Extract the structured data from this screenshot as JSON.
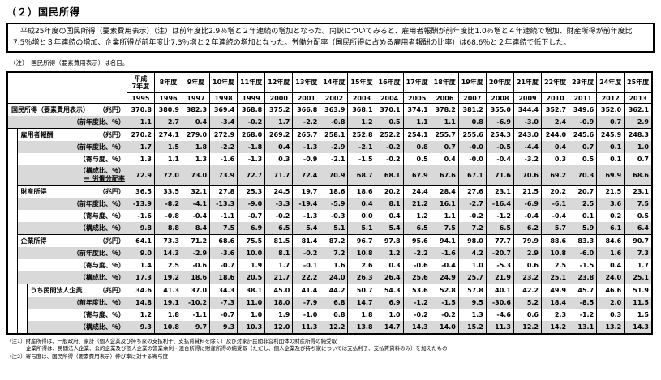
{
  "page": {
    "title": "（２）国民所得",
    "summary": "　平成25年度の国民所得（要素費用表示）（注）は前年度比2.9％増と２年連続の増加となった。内訳についてみると、雇用者報酬が前年度比1.0％増と４年連続で増加、財産所得が前年度比7.5％増と３年連続の増加、企業所得が前年度比7.3％増と２年連続の増加となった。労働分配率（国民所得に占める雇用者報酬の比率）は68.6％と２年連続で低下した。",
    "note": "（注）　国民所得（要素費用表示）は名目。",
    "footnotes": [
      "（注1）財産所得は、一般政府、家計（個人企業及び持ち家の支払利子、支払賃貸料を除く）及び対家計民間非営利団体の財産所得の純受取",
      "企業所得は、民間法人企業、公的企業及び個人企業の営業余剰・混合所得に財産所得の純受取（ただし、個人企業及び持ち家については支払利子、支払賃貸料のみ）を加えたもの",
      "（注2）寄与度は、国民所得（要素費用表示）伸び率に対する寄与度"
    ]
  },
  "colors": {
    "shade": "#d9d9d9",
    "border": "#000000",
    "text": "#000000"
  },
  "table": {
    "era_labels": [
      "平成\n7年度",
      "8年度",
      "9年度",
      "10年度",
      "11年度",
      "12年度",
      "13年度",
      "14年度",
      "15年度",
      "16年度",
      "17年度",
      "18年度",
      "19年度",
      "20年度",
      "21年度",
      "22年度",
      "23年度",
      "24年度",
      "25年度"
    ],
    "years": [
      "1995",
      "1996",
      "1997",
      "1998",
      "1999",
      "2000",
      "2001",
      "2002",
      "2003",
      "2004",
      "2005",
      "2006",
      "2007",
      "2008",
      "2009",
      "2010",
      "2011",
      "2012",
      "2013"
    ],
    "sections": [
      {
        "name": "国民所得（要素費用表示）",
        "indent": 0,
        "rows": [
          {
            "label": "国民所得（要素費用表示）",
            "unit": "（兆円）",
            "shaded": false,
            "values": [
              "370.8",
              "380.9",
              "382.3",
              "369.4",
              "368.8",
              "375.2",
              "366.8",
              "363.9",
              "368.1",
              "370.1",
              "374.1",
              "378.2",
              "381.2",
              "355.0",
              "344.4",
              "352.7",
              "349.6",
              "352.0",
              "362.1"
            ]
          },
          {
            "label": "",
            "unit": "（前年度比、％）",
            "shaded": true,
            "values": [
              "1.1",
              "2.7",
              "0.4",
              "-3.4",
              "-0.2",
              "1.7",
              "-2.2",
              "-0.8",
              "1.2",
              "0.5",
              "1.1",
              "1.1",
              "0.8",
              "-6.9",
              "-3.0",
              "2.4",
              "-0.9",
              "0.7",
              "2.9"
            ]
          }
        ]
      },
      {
        "name": "雇用者報酬",
        "indent": 1,
        "rows": [
          {
            "label": "雇用者報酬",
            "unit": "（兆円）",
            "shaded": false,
            "values": [
              "270.2",
              "274.1",
              "279.0",
              "272.9",
              "268.0",
              "269.2",
              "265.7",
              "258.1",
              "252.8",
              "252.2",
              "254.1",
              "255.7",
              "255.6",
              "254.3",
              "243.0",
              "244.0",
              "245.6",
              "245.9",
              "248.3"
            ]
          },
          {
            "label": "",
            "unit": "（前年度比、％）",
            "shaded": true,
            "values": [
              "1.7",
              "1.5",
              "1.8",
              "-2.2",
              "-1.8",
              "0.4",
              "-1.3",
              "-2.9",
              "-2.1",
              "-0.2",
              "0.8",
              "0.7",
              "-0.0",
              "-0.5",
              "-4.4",
              "0.4",
              "0.7",
              "0.1",
              "1.0"
            ]
          },
          {
            "label": "",
            "unit": "（寄与度、％）",
            "shaded": false,
            "values": [
              "1.3",
              "1.1",
              "1.3",
              "-1.6",
              "-1.3",
              "0.3",
              "-0.9",
              "-2.1",
              "-1.5",
              "-0.2",
              "0.5",
              "0.4",
              "-0.0",
              "-0.4",
              "-3.2",
              "0.3",
              "0.5",
              "0.1",
              "0.7"
            ]
          },
          {
            "label": "",
            "unit": "（構成比、％）",
            "note": "＝ 労働分配率",
            "shaded": true,
            "values": [
              "72.9",
              "72.0",
              "73.0",
              "73.9",
              "72.7",
              "71.7",
              "72.4",
              "70.9",
              "68.7",
              "68.1",
              "67.9",
              "67.6",
              "67.1",
              "71.6",
              "70.6",
              "69.2",
              "70.3",
              "69.9",
              "68.6"
            ]
          }
        ]
      },
      {
        "name": "財産所得",
        "indent": 1,
        "rows": [
          {
            "label": "財産所得",
            "unit": "（兆円）",
            "shaded": false,
            "values": [
              "36.5",
              "33.5",
              "32.1",
              "27.8",
              "25.3",
              "24.5",
              "19.7",
              "18.6",
              "18.6",
              "20.2",
              "24.4",
              "28.4",
              "27.6",
              "23.1",
              "21.5",
              "20.2",
              "20.7",
              "21.5",
              "23.1"
            ]
          },
          {
            "label": "",
            "unit": "（前年度比、％）",
            "shaded": true,
            "values": [
              "-13.9",
              "-8.2",
              "-4.1",
              "-13.3",
              "-9.0",
              "-3.3",
              "-19.4",
              "-5.9",
              "0.4",
              "8.1",
              "21.2",
              "16.1",
              "-2.7",
              "-16.4",
              "-6.9",
              "-6.1",
              "2.5",
              "3.6",
              "7.5"
            ]
          },
          {
            "label": "",
            "unit": "（寄与度、％）",
            "shaded": false,
            "values": [
              "-1.6",
              "-0.8",
              "-0.4",
              "-1.1",
              "-0.7",
              "-0.2",
              "-1.3",
              "-0.3",
              "0.0",
              "0.4",
              "1.2",
              "1.1",
              "-0.2",
              "-1.2",
              "-0.4",
              "-0.4",
              "0.1",
              "0.2",
              "0.5"
            ]
          },
          {
            "label": "",
            "unit": "（構成比、％）",
            "shaded": true,
            "values": [
              "9.8",
              "8.8",
              "8.4",
              "7.5",
              "6.9",
              "6.5",
              "5.4",
              "5.1",
              "5.1",
              "5.4",
              "6.5",
              "7.5",
              "7.2",
              "6.5",
              "6.2",
              "5.7",
              "5.9",
              "6.1",
              "6.4"
            ]
          }
        ]
      },
      {
        "name": "企業所得",
        "indent": 1,
        "rows": [
          {
            "label": "企業所得",
            "unit": "（兆円）",
            "shaded": false,
            "values": [
              "64.1",
              "73.3",
              "71.2",
              "68.6",
              "75.5",
              "81.5",
              "81.4",
              "87.2",
              "96.7",
              "97.8",
              "95.6",
              "94.1",
              "98.0",
              "77.7",
              "79.9",
              "88.6",
              "83.3",
              "84.6",
              "90.7"
            ]
          },
          {
            "label": "",
            "unit": "（前年度比、％）",
            "shaded": true,
            "values": [
              "9.0",
              "14.3",
              "-2.9",
              "-3.6",
              "10.0",
              "8.1",
              "-0.2",
              "7.2",
              "10.8",
              "1.2",
              "-2.2",
              "-1.6",
              "4.2",
              "-20.7",
              "2.9",
              "10.8",
              "-6.0",
              "1.6",
              "7.3"
            ]
          },
          {
            "label": "",
            "unit": "（寄与度、％）",
            "shaded": false,
            "values": [
              "1.4",
              "2.5",
              "-0.6",
              "-0.7",
              "1.9",
              "1.7",
              "-0.1",
              "1.6",
              "2.6",
              "0.3",
              "-0.6",
              "-0.4",
              "1.0",
              "-5.3",
              "0.6",
              "2.5",
              "-1.5",
              "0.4",
              "1.7"
            ]
          },
          {
            "label": "",
            "unit": "（構成比、％）",
            "shaded": true,
            "values": [
              "17.3",
              "19.2",
              "18.6",
              "18.6",
              "20.5",
              "21.7",
              "22.2",
              "24.0",
              "26.3",
              "26.4",
              "25.6",
              "24.9",
              "25.7",
              "21.9",
              "23.2",
              "25.1",
              "23.8",
              "24.0",
              "25.1"
            ]
          }
        ]
      },
      {
        "name": "うち民間法人企業",
        "indent": 2,
        "rows": [
          {
            "label": "うち民間法人企業",
            "unit": "（兆円）",
            "shaded": false,
            "values": [
              "34.6",
              "41.3",
              "37.0",
              "34.3",
              "38.1",
              "45.0",
              "41.4",
              "44.2",
              "50.7",
              "54.3",
              "53.6",
              "52.8",
              "57.8",
              "40.1",
              "42.2",
              "49.9",
              "45.7",
              "46.6",
              "51.9"
            ]
          },
          {
            "label": "",
            "unit": "（前年度比、％）",
            "shaded": true,
            "values": [
              "14.8",
              "19.1",
              "-10.2",
              "-7.3",
              "11.0",
              "18.0",
              "-7.9",
              "6.8",
              "14.7",
              "6.9",
              "-1.2",
              "-1.5",
              "9.5",
              "-30.6",
              "5.2",
              "18.4",
              "-8.5",
              "2.0",
              "11.5"
            ]
          },
          {
            "label": "",
            "unit": "（寄与度、％）",
            "shaded": false,
            "values": [
              "1.2",
              "1.8",
              "-1.1",
              "-0.7",
              "1.0",
              "1.9",
              "-1.0",
              "0.8",
              "1.8",
              "1.0",
              "-0.2",
              "-0.2",
              "1.3",
              "-4.6",
              "0.6",
              "2.3",
              "-1.2",
              "0.3",
              "1.5"
            ]
          },
          {
            "label": "",
            "unit": "（構成比、％）",
            "shaded": true,
            "values": [
              "9.3",
              "10.8",
              "9.7",
              "9.3",
              "10.3",
              "12.0",
              "11.3",
              "12.2",
              "13.8",
              "14.7",
              "14.3",
              "14.0",
              "15.2",
              "11.3",
              "12.2",
              "14.2",
              "13.1",
              "13.2",
              "14.3"
            ]
          }
        ]
      }
    ]
  }
}
